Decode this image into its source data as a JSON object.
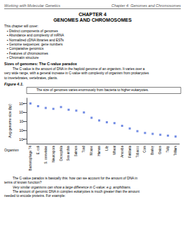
{
  "chart_data": {
    "type": "scatter",
    "title": "The size of genomes varies enormously from bacteria to higher eukaryotes.",
    "categories": [
      "Bacteriophage T4",
      "E. coli",
      "S. cerevisiae",
      "Neurospora",
      "Drosophila",
      "Sea urchin",
      "Salmon",
      "Toad",
      "Mouse",
      "Human",
      "Lily",
      "Wheat",
      "Amoeba",
      "Fritillaria",
      "Tobacco",
      "Corn",
      "Barley",
      "Onion",
      "Tulip",
      "Trillium"
    ],
    "values": [
      9.0,
      8.7,
      8.5,
      8.4,
      8.6,
      8.3,
      8.2,
      8.0,
      7.4,
      7.1,
      6.9,
      6.8,
      6.5,
      6.2,
      5.9,
      5.7,
      5.6,
      5.5,
      5.4,
      5.3
    ],
    "ylabel": "Avg genome size (bp)",
    "xlabel": "Organism",
    "ylim": [
      4.5,
      9.6
    ],
    "yticks": [
      {
        "value": 5,
        "label": "10⁵"
      },
      {
        "value": 6,
        "label": "10⁶"
      },
      {
        "value": 7,
        "label": "10⁷"
      },
      {
        "value": 8,
        "label": "10⁸"
      },
      {
        "value": 9,
        "label": "10⁹"
      }
    ],
    "marker": "square",
    "grid": false,
    "annotations": [
      "Working with Molecular Genetics",
      "Chapter 4: Genomes and Chromosomes",
      "CHAPTER 4",
      "GENOMES AND CHROMOSOMES",
      "This chapter will cover:",
      "▪ Distinct components of genomes",
      "▪ Abundance and complexity of mRNA",
      "▪ Normalized cDNA libraries and ESTs",
      "▪ Genome sequences: gene numbers",
      "▪ Comparative genomics",
      "▪ Features of chromosomes",
      "▪ Chromatin structure",
      "Sizes of genomes: The C-value paradox",
      "The C-value is the amount of DNA in the haploid genome of an organism. It varies over a",
      "very wide range, with a general increase in C-value with complexity of organism from prokaryotes",
      "to invertebrates, vertebrates, plants.",
      "Figure 4.1.",
      "The C-value paradox is basically this: how can we account for the amount of DNA in",
      "terms of known function?",
      "Very similar organisms can show a large difference in C-value; e.g. amphibians.",
      "The amount of genomic DNA in complex eukaryotes is much greater than the amount",
      "needed to encode proteins. For example:"
    ]
  }
}
